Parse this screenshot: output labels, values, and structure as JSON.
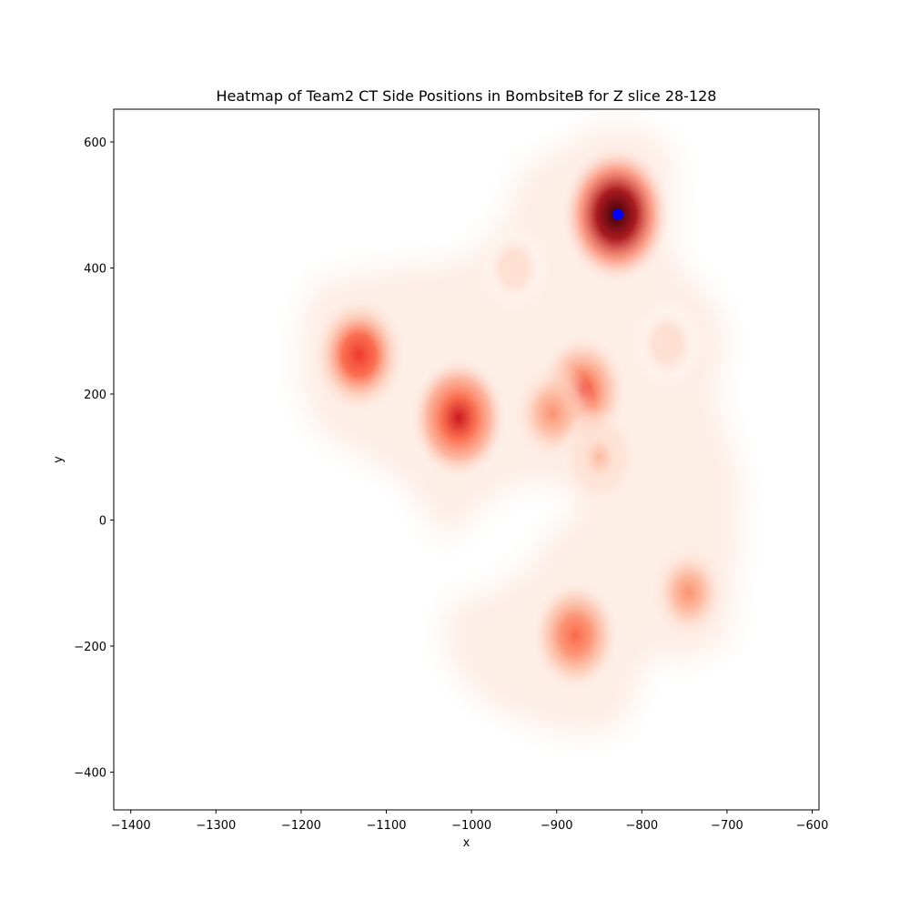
{
  "chart_data": {
    "type": "heatmap",
    "title": "Heatmap of Team2 CT Side Positions in BombsiteB for Z slice 28-128",
    "xlabel": "x",
    "ylabel": "y",
    "xlim": [
      -1420,
      -592
    ],
    "ylim": [
      -460,
      652
    ],
    "x_ticks": [
      -1400,
      -1300,
      -1200,
      -1100,
      -1000,
      -900,
      -800,
      -700,
      -600
    ],
    "y_ticks": [
      -400,
      -200,
      0,
      200,
      400,
      600
    ],
    "x_tick_labels": [
      "−1400",
      "−1300",
      "−1200",
      "−1100",
      "−1000",
      "−900",
      "−800",
      "−700",
      "−600"
    ],
    "y_tick_labels": [
      "−400",
      "−200",
      "0",
      "200",
      "400",
      "600"
    ],
    "grid": false,
    "colormap": "Reds",
    "density_peaks": [
      {
        "x": -830,
        "y": 485,
        "intensity": 1.0
      },
      {
        "x": -1132,
        "y": 262,
        "intensity": 0.6
      },
      {
        "x": -1015,
        "y": 162,
        "intensity": 0.65
      },
      {
        "x": -870,
        "y": 205,
        "intensity": 0.5
      },
      {
        "x": -905,
        "y": 170,
        "intensity": 0.35
      },
      {
        "x": -878,
        "y": -183,
        "intensity": 0.45
      },
      {
        "x": -745,
        "y": -115,
        "intensity": 0.3
      },
      {
        "x": -850,
        "y": 100,
        "intensity": 0.2
      },
      {
        "x": -770,
        "y": 280,
        "intensity": 0.12
      },
      {
        "x": -950,
        "y": 400,
        "intensity": 0.08
      }
    ],
    "marker": {
      "x": -828,
      "y": 485,
      "color": "#0000ff"
    }
  }
}
